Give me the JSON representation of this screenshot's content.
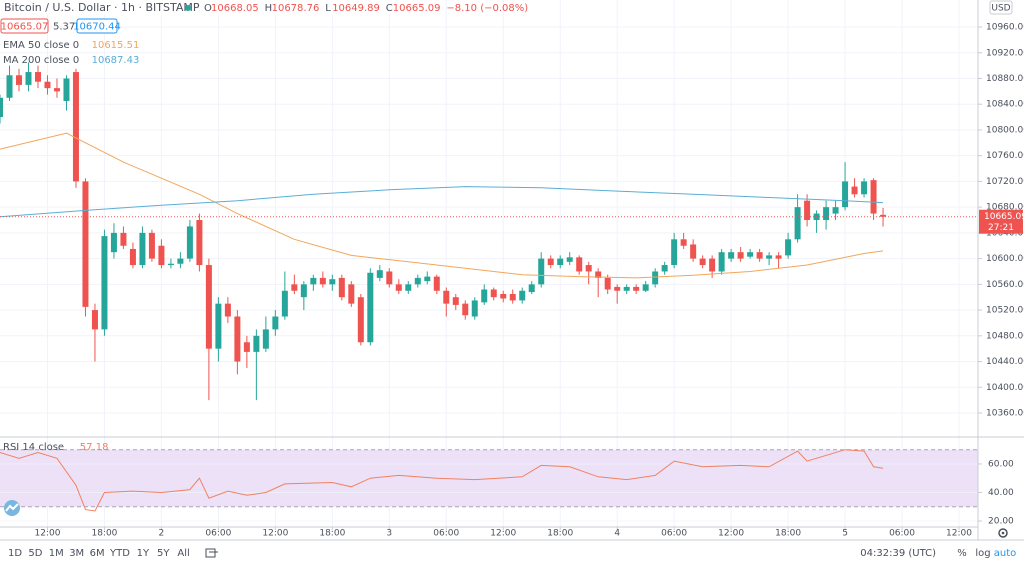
{
  "header": {
    "title": "Bitcoin / U.S. Dollar · 1h · BITSTAMP",
    "ohlc_legend": [
      {
        "key": "O",
        "value": "10668.05"
      },
      {
        "key": "H",
        "value": "10678.76"
      },
      {
        "key": "L",
        "value": "10649.89"
      },
      {
        "key": "C",
        "value": "10665.09"
      },
      {
        "key": "",
        "value": "−8.10 (−0.08%)"
      }
    ],
    "bid": "10665.07",
    "spread": "5.37",
    "ask": "10670.44",
    "currency": "USD",
    "countdown": "27:21"
  },
  "chart_data": [
    {
      "type": "candlestick",
      "up_color": "#26a69a",
      "down_color": "#ef5350",
      "xlim": [
        7,
        110
      ],
      "ylim": [
        10322.7,
        11002
      ],
      "grid": true,
      "last_price": 10665.09,
      "xticks": [
        {
          "value": 12,
          "label": "12:00"
        },
        {
          "value": 18,
          "label": "18:00"
        },
        {
          "value": 24,
          "label": "2"
        },
        {
          "value": 30,
          "label": "06:00"
        },
        {
          "value": 36,
          "label": "12:00"
        },
        {
          "value": 42,
          "label": "18:00"
        },
        {
          "value": 48,
          "label": "3"
        },
        {
          "value": 54,
          "label": "06:00"
        },
        {
          "value": 60,
          "label": "12:00"
        },
        {
          "value": 66,
          "label": "18:00"
        },
        {
          "value": 72,
          "label": "4"
        },
        {
          "value": 78,
          "label": "06:00"
        },
        {
          "value": 84,
          "label": "12:00"
        },
        {
          "value": 90,
          "label": "18:00"
        },
        {
          "value": 96,
          "label": "5"
        },
        {
          "value": 102,
          "label": "06:00"
        },
        {
          "value": 108,
          "label": "12:00"
        }
      ],
      "yticks": [
        {
          "value": 10360,
          "label": "10360.00"
        },
        {
          "value": 10400,
          "label": "10400.00"
        },
        {
          "value": 10440,
          "label": "10440.00"
        },
        {
          "value": 10480,
          "label": "10480.00"
        },
        {
          "value": 10520,
          "label": "10520.00"
        },
        {
          "value": 10560,
          "label": "10560.00"
        },
        {
          "value": 10600,
          "label": "10600.00"
        },
        {
          "value": 10640,
          "label": "10640.00"
        },
        {
          "value": 10680,
          "label": "10680.00"
        },
        {
          "value": 10720,
          "label": "10720.00"
        },
        {
          "value": 10760,
          "label": "10760.00"
        },
        {
          "value": 10800,
          "label": "10800.00"
        },
        {
          "value": 10840,
          "label": "10840.00"
        },
        {
          "value": 10880,
          "label": "10880.00"
        },
        {
          "value": 10920,
          "label": "10920.00"
        },
        {
          "value": 10960,
          "label": "10960.00"
        }
      ],
      "x": [
        7,
        8,
        9,
        10,
        11,
        12,
        13,
        14,
        15,
        16,
        17,
        18,
        19,
        20,
        21,
        22,
        23,
        24,
        25,
        26,
        27,
        28,
        29,
        30,
        31,
        32,
        33,
        34,
        35,
        36,
        37,
        38,
        39,
        40,
        41,
        42,
        43,
        44,
        45,
        46,
        47,
        48,
        49,
        50,
        51,
        52,
        53,
        54,
        55,
        56,
        57,
        58,
        59,
        60,
        61,
        62,
        63,
        64,
        65,
        66,
        67,
        68,
        69,
        70,
        71,
        72,
        73,
        74,
        75,
        76,
        77,
        78,
        79,
        80,
        81,
        82,
        83,
        84,
        85,
        86,
        87,
        88,
        89,
        90,
        91,
        92,
        93,
        94,
        95,
        96,
        97,
        98,
        99,
        100
      ],
      "ohlc": [
        [
          10820,
          10855,
          10810,
          10850
        ],
        [
          10850,
          10900,
          10845,
          10885
        ],
        [
          10885,
          10895,
          10860,
          10870
        ],
        [
          10870,
          10905,
          10860,
          10890
        ],
        [
          10890,
          10900,
          10865,
          10875
        ],
        [
          10875,
          10885,
          10855,
          10865
        ],
        [
          10865,
          10880,
          10850,
          10860
        ],
        [
          10845,
          10885,
          10830,
          10880
        ],
        [
          10890,
          10895,
          10710,
          10720
        ],
        [
          10720,
          10725,
          10510,
          10525
        ],
        [
          10520,
          10530,
          10440,
          10490
        ],
        [
          10490,
          10645,
          10480,
          10635
        ],
        [
          10610,
          10655,
          10600,
          10640
        ],
        [
          10640,
          10650,
          10615,
          10620
        ],
        [
          10615,
          10625,
          10585,
          10590
        ],
        [
          10590,
          10650,
          10585,
          10640
        ],
        [
          10640,
          10645,
          10595,
          10600
        ],
        [
          10620,
          10630,
          10585,
          10590
        ],
        [
          10590,
          10600,
          10585,
          10592
        ],
        [
          10592,
          10610,
          10585,
          10600
        ],
        [
          10600,
          10660,
          10595,
          10650
        ],
        [
          10660,
          10670,
          10580,
          10590
        ],
        [
          10590,
          10600,
          10380,
          10460
        ],
        [
          10460,
          10540,
          10440,
          10530
        ],
        [
          10530,
          10540,
          10500,
          10510
        ],
        [
          10510,
          10520,
          10420,
          10440
        ],
        [
          10470,
          10480,
          10430,
          10455
        ],
        [
          10455,
          10490,
          10380,
          10480
        ],
        [
          10460,
          10510,
          10455,
          10490
        ],
        [
          10490,
          10520,
          10480,
          10510
        ],
        [
          10510,
          10580,
          10505,
          10550
        ],
        [
          10560,
          10575,
          10545,
          10550
        ],
        [
          10540,
          10565,
          10520,
          10560
        ],
        [
          10560,
          10575,
          10550,
          10570
        ],
        [
          10570,
          10580,
          10555,
          10560
        ],
        [
          10560,
          10575,
          10550,
          10568
        ],
        [
          10570,
          10575,
          10535,
          10540
        ],
        [
          10560,
          10565,
          10525,
          10530
        ],
        [
          10540,
          10545,
          10465,
          10470
        ],
        [
          10470,
          10585,
          10465,
          10578
        ],
        [
          10570,
          10590,
          10565,
          10582
        ],
        [
          10580,
          10585,
          10555,
          10560
        ],
        [
          10560,
          10568,
          10545,
          10550
        ],
        [
          10550,
          10565,
          10545,
          10560
        ],
        [
          10560,
          10575,
          10555,
          10570
        ],
        [
          10565,
          10580,
          10560,
          10572
        ],
        [
          10572,
          10575,
          10545,
          10550
        ],
        [
          10550,
          10555,
          10510,
          10530
        ],
        [
          10540,
          10545,
          10520,
          10528
        ],
        [
          10530,
          10535,
          10505,
          10512
        ],
        [
          10510,
          10540,
          10505,
          10535
        ],
        [
          10532,
          10560,
          10528,
          10552
        ],
        [
          10552,
          10555,
          10535,
          10540
        ],
        [
          10545,
          10550,
          10532,
          10538
        ],
        [
          10545,
          10552,
          10530,
          10535
        ],
        [
          10535,
          10555,
          10530,
          10550
        ],
        [
          10548,
          10565,
          10545,
          10560
        ],
        [
          10560,
          10610,
          10555,
          10600
        ],
        [
          10600,
          10605,
          10585,
          10590
        ],
        [
          10590,
          10605,
          10585,
          10600
        ],
        [
          10595,
          10610,
          10590,
          10602
        ],
        [
          10602,
          10605,
          10575,
          10580
        ],
        [
          10590,
          10595,
          10560,
          10580
        ],
        [
          10580,
          10585,
          10540,
          10570
        ],
        [
          10570,
          10575,
          10545,
          10552
        ],
        [
          10556,
          10560,
          10530,
          10550
        ],
        [
          10550,
          10560,
          10545,
          10556
        ],
        [
          10556,
          10560,
          10545,
          10550
        ],
        [
          10550,
          10565,
          10548,
          10560
        ],
        [
          10560,
          10585,
          10555,
          10580
        ],
        [
          10580,
          10595,
          10575,
          10590
        ],
        [
          10590,
          10640,
          10585,
          10630
        ],
        [
          10630,
          10640,
          10615,
          10620
        ],
        [
          10622,
          10630,
          10595,
          10600
        ],
        [
          10600,
          10605,
          10585,
          10590
        ],
        [
          10600,
          10605,
          10570,
          10580
        ],
        [
          10580,
          10615,
          10575,
          10610
        ],
        [
          10600,
          10615,
          10595,
          10610
        ],
        [
          10610,
          10618,
          10595,
          10600
        ],
        [
          10603,
          10615,
          10600,
          10610
        ],
        [
          10610,
          10615,
          10595,
          10600
        ],
        [
          10600,
          10610,
          10590,
          10605
        ],
        [
          10605,
          10610,
          10585,
          10600
        ],
        [
          10605,
          10640,
          10600,
          10630
        ],
        [
          10630,
          10700,
          10625,
          10680
        ],
        [
          10690,
          10700,
          10650,
          10660
        ],
        [
          10660,
          10675,
          10640,
          10670
        ],
        [
          10660,
          10690,
          10645,
          10680
        ],
        [
          10670,
          10690,
          10660,
          10680
        ],
        [
          10680,
          10750,
          10675,
          10720
        ],
        [
          10712,
          10725,
          10695,
          10700
        ],
        [
          10700,
          10725,
          10695,
          10720
        ],
        [
          10722,
          10725,
          10660,
          10670
        ],
        [
          10668.05,
          10678.76,
          10649.89,
          10665.09
        ]
      ],
      "series": [
        {
          "name": "EMA 50 close 0",
          "color": "#f2a65a",
          "last": 10615.51,
          "x": [
            7,
            14,
            16,
            20,
            24,
            28,
            32,
            38,
            44,
            50,
            56,
            62,
            68,
            74,
            80,
            86,
            92,
            98,
            100
          ],
          "values": [
            10770,
            10795,
            10780,
            10750,
            10725,
            10700,
            10670,
            10630,
            10605,
            10595,
            10585,
            10575,
            10572,
            10570,
            10574,
            10580,
            10590,
            10608,
            10612
          ]
        },
        {
          "name": "MA 200 close 0",
          "color": "#5aaed6",
          "last": 10687.43,
          "x": [
            7,
            16,
            24,
            32,
            40,
            48,
            56,
            64,
            72,
            80,
            88,
            96,
            100
          ],
          "values": [
            10665,
            10675,
            10683,
            10690,
            10700,
            10707,
            10712,
            10710,
            10705,
            10700,
            10695,
            10690,
            10687
          ]
        }
      ]
    },
    {
      "type": "line",
      "title": "RSI 14 close",
      "last": 57.18,
      "color": "#f08262",
      "band": [
        30,
        70
      ],
      "band_color": "#ede1f7",
      "xlim": [
        7,
        110
      ],
      "ylim": [
        15.8,
        78.9
      ],
      "yticks": [
        {
          "value": 20,
          "label": "20.00"
        },
        {
          "value": 40,
          "label": "40.00"
        },
        {
          "value": 60,
          "label": "60.00"
        }
      ],
      "x": [
        7,
        9,
        11,
        13,
        15,
        16,
        17,
        18,
        21,
        24,
        27,
        28,
        29,
        31,
        33,
        35,
        37,
        42,
        44,
        46,
        49,
        53,
        57,
        62,
        64,
        67,
        70,
        73,
        76,
        78,
        81,
        85,
        88,
        91,
        92,
        96,
        98,
        99,
        100
      ],
      "values": [
        68,
        64,
        68,
        64,
        45,
        28,
        27,
        40,
        41,
        40,
        42,
        50,
        36,
        41,
        38,
        40,
        46,
        47,
        44,
        50,
        52,
        50,
        49,
        51,
        59,
        58,
        51,
        49,
        52,
        62,
        58,
        59,
        58,
        69,
        62,
        70,
        69,
        58,
        57
      ]
    }
  ],
  "toolbar": {
    "ranges": [
      "1D",
      "5D",
      "1M",
      "3M",
      "6M",
      "YTD",
      "1Y",
      "5Y",
      "All"
    ],
    "clock": "04:32:39 (UTC)",
    "options": [
      "%",
      "log",
      "auto"
    ]
  }
}
